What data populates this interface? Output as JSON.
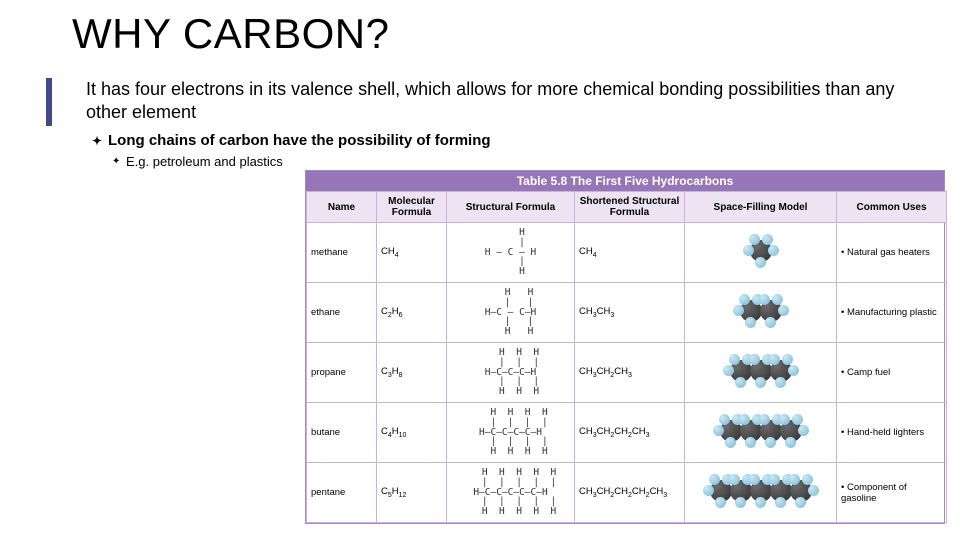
{
  "title": "WHY CARBON?",
  "subtitle": "It has four electrons in its valence shell, which allows for more chemical bonding possibilities than any other element",
  "bullet1": "Long chains of carbon have the possibility of forming",
  "bullet2": "E.g. petroleum and plastics",
  "table": {
    "caption": "Table 5.8 The First Five Hydrocarbons",
    "headers": [
      "Name",
      "Molecular Formula",
      "Structural Formula",
      "Shortened Structural Formula",
      "Space-Filling Model",
      "Common Uses"
    ],
    "col_widths": [
      "70px",
      "70px",
      "128px",
      "110px",
      "152px",
      "110px"
    ],
    "rows": [
      {
        "name": "methane",
        "mf_base": "CH",
        "mf_sub": "4",
        "struct": "    H\n    |\nH — C — H\n    |\n    H",
        "short_html": "CH<span class='sub'>4</span>",
        "use": "Natural gas heaters",
        "carbons": 1
      },
      {
        "name": "ethane",
        "mf_base": "C",
        "mf_s1": "2",
        "mf_mid": "H",
        "mf_s2": "6",
        "struct": "   H   H\n   |   |\nH—C — C—H\n   |   |\n   H   H",
        "short_html": "CH<span class='sub'>3</span>CH<span class='sub'>3</span>",
        "use": "Manufacturing plastic",
        "carbons": 2
      },
      {
        "name": "propane",
        "mf_base": "C",
        "mf_s1": "3",
        "mf_mid": "H",
        "mf_s2": "8",
        "struct": "   H  H  H\n   |  |  |\nH—C—C—C—H\n   |  |  |\n   H  H  H",
        "short_html": "CH<span class='sub'>3</span>CH<span class='sub'>2</span>CH<span class='sub'>3</span>",
        "use": "Camp fuel",
        "carbons": 3
      },
      {
        "name": "butane",
        "mf_base": "C",
        "mf_s1": "4",
        "mf_mid": "H",
        "mf_s2": "10",
        "struct": "   H  H  H  H\n   |  |  |  |\nH—C—C—C—C—H\n   |  |  |  |\n   H  H  H  H",
        "short_html": "CH<span class='sub'>3</span>CH<span class='sub'>2</span>CH<span class='sub'>2</span>CH<span class='sub'>3</span>",
        "use": "Hand-held lighters",
        "carbons": 4
      },
      {
        "name": "pentane",
        "mf_base": "C",
        "mf_s1": "5",
        "mf_mid": "H",
        "mf_s2": "12",
        "struct": "   H  H  H  H  H\n   |  |  |  |  |\nH—C—C—C—C—C—H\n   |  |  |  |  |\n   H  H  H  H  H",
        "short_html": "CH<span class='sub'>3</span>CH<span class='sub'>2</span>CH<span class='sub'>2</span>CH<span class='sub'>2</span>CH<span class='sub'>3</span>",
        "use": "Component of gasoline",
        "carbons": 5
      }
    ]
  },
  "colors": {
    "accent": "#404a8a",
    "table_header": "#9776b8",
    "col_header": "#ede3f3",
    "border": "#c9b3db",
    "carbon": "#2b2b2b",
    "hydrogen": "#7bb8d5"
  }
}
